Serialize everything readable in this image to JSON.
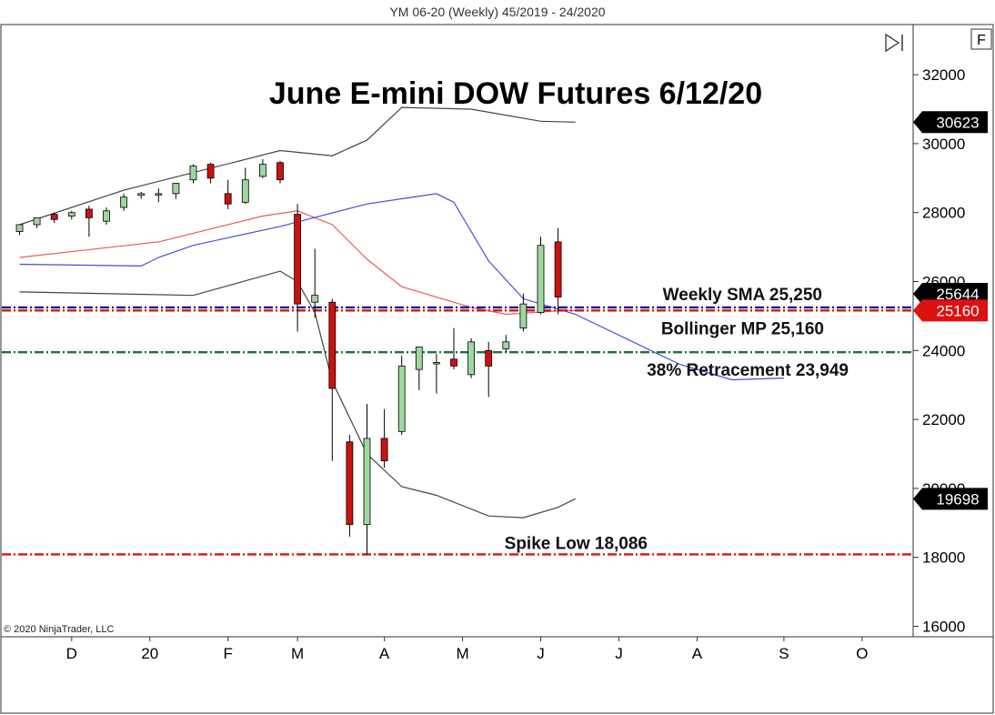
{
  "header": {
    "instrument_title": "YM 06-20 (Weekly)  45/2019 - 24/2020"
  },
  "toolbar": {
    "f_label": "F"
  },
  "copyright": "© 2020 NinjaTrader, LLC",
  "colors": {
    "up": "#9ed89e",
    "down": "#cc1111",
    "upper_band": "#444444",
    "lower_band": "#444444",
    "mid_band": "#e06060",
    "sma": "#4a4ae0",
    "sma_line": "#1a1a99",
    "bb_line": "#dd1111",
    "retr_line": "#117733",
    "spike_line": "#dd1111"
  },
  "chart_data": {
    "type": "candlestick",
    "title": "June E-mini DOW Futures 6/12/20",
    "ylim": [
      15600,
      32600
    ],
    "y_ticks": [
      16000,
      18000,
      20000,
      22000,
      24000,
      26000,
      28000,
      30000,
      32000
    ],
    "y_tick_labels": [
      "16000",
      "18000",
      "20000",
      "22000",
      "24000",
      "26000",
      "28000",
      "30000",
      "32000"
    ],
    "x_month_labels": [
      {
        "label": "D",
        "week": 3
      },
      {
        "label": "20",
        "week": 7.5
      },
      {
        "label": "F",
        "week": 12
      },
      {
        "label": "M",
        "week": 16
      },
      {
        "label": "A",
        "week": 21
      },
      {
        "label": "M",
        "week": 25.5
      },
      {
        "label": "J",
        "week": 30
      },
      {
        "label": "J",
        "week": 34.5
      },
      {
        "label": "A",
        "week": 39
      },
      {
        "label": "S",
        "week": 44
      },
      {
        "label": "O",
        "week": 48.5
      }
    ],
    "candles": [
      {
        "open": 27450,
        "high": 27600,
        "low": 27350,
        "close": 27650
      },
      {
        "open": 27650,
        "high": 27800,
        "low": 27550,
        "close": 27850
      },
      {
        "open": 27950,
        "high": 28000,
        "low": 27700,
        "close": 27800
      },
      {
        "open": 27900,
        "high": 28050,
        "low": 27800,
        "close": 28000
      },
      {
        "open": 28100,
        "high": 28200,
        "low": 27300,
        "close": 27850
      },
      {
        "open": 27750,
        "high": 28150,
        "low": 27650,
        "close": 28050
      },
      {
        "open": 28150,
        "high": 28550,
        "low": 28050,
        "close": 28450
      },
      {
        "open": 28500,
        "high": 28600,
        "low": 28400,
        "close": 28550
      },
      {
        "open": 28550,
        "high": 28700,
        "low": 28300,
        "close": 28550
      },
      {
        "open": 28550,
        "high": 28850,
        "low": 28400,
        "close": 28850
      },
      {
        "open": 28950,
        "high": 29400,
        "low": 28850,
        "close": 29350
      },
      {
        "open": 29400,
        "high": 29450,
        "low": 28850,
        "close": 29000
      },
      {
        "open": 28550,
        "high": 28950,
        "low": 28100,
        "close": 28250
      },
      {
        "open": 28300,
        "high": 29300,
        "low": 28250,
        "close": 28950
      },
      {
        "open": 29050,
        "high": 29550,
        "low": 29000,
        "close": 29400
      },
      {
        "open": 29450,
        "high": 29500,
        "low": 28850,
        "close": 28950
      },
      {
        "open": 27950,
        "high": 28250,
        "low": 24550,
        "close": 25350
      },
      {
        "open": 25400,
        "high": 26950,
        "low": 24950,
        "close": 25600
      },
      {
        "open": 25400,
        "high": 25500,
        "low": 20800,
        "close": 22900
      },
      {
        "open": 21350,
        "high": 21550,
        "low": 18600,
        "close": 18950
      },
      {
        "open": 18950,
        "high": 22450,
        "low": 18086,
        "close": 21450
      },
      {
        "open": 21450,
        "high": 22300,
        "low": 20600,
        "close": 20800
      },
      {
        "open": 21650,
        "high": 23850,
        "low": 21550,
        "close": 23550
      },
      {
        "open": 23450,
        "high": 24100,
        "low": 22850,
        "close": 24100
      },
      {
        "open": 23650,
        "high": 23900,
        "low": 22750,
        "close": 23650
      },
      {
        "open": 23750,
        "high": 24650,
        "low": 23450,
        "close": 23550
      },
      {
        "open": 23300,
        "high": 24350,
        "low": 23200,
        "close": 24250
      },
      {
        "open": 24000,
        "high": 24250,
        "low": 22650,
        "close": 23550
      },
      {
        "open": 24050,
        "high": 24450,
        "low": 23950,
        "close": 24250
      },
      {
        "open": 24650,
        "high": 25650,
        "low": 24550,
        "close": 25350
      },
      {
        "open": 25100,
        "high": 27300,
        "low": 25050,
        "close": 27050
      },
      {
        "open": 27150,
        "high": 27550,
        "low": 25050,
        "close": 25550
      }
    ],
    "upper_band": {
      "x": [
        0,
        6,
        15,
        18,
        20,
        22,
        26,
        30,
        32
      ],
      "y": [
        27650,
        28650,
        29800,
        29650,
        30100,
        31050,
        31000,
        30650,
        30623
      ]
    },
    "middle_band": {
      "x": [
        0,
        8,
        14,
        16,
        18,
        20,
        22,
        26,
        28,
        31,
        32
      ],
      "y": [
        26700,
        27150,
        27900,
        28050,
        27650,
        26650,
        25850,
        25250,
        25050,
        25150,
        25160
      ]
    },
    "lower_band": {
      "x": [
        0,
        10,
        15,
        16,
        17,
        18,
        20,
        22,
        24,
        27,
        29,
        31,
        32
      ],
      "y": [
        25700,
        25600,
        26300,
        26000,
        25100,
        23100,
        21000,
        20050,
        19800,
        19200,
        19150,
        19450,
        19698
      ]
    },
    "sma": {
      "x": [
        0,
        7,
        8,
        10,
        15,
        20,
        22,
        24,
        25,
        27,
        29,
        32,
        38,
        41,
        44
      ],
      "y": [
        26500,
        26450,
        26700,
        27050,
        27600,
        28250,
        28400,
        28550,
        28300,
        26600,
        25500,
        25050,
        23600,
        23150,
        23200
      ]
    },
    "levels": [
      {
        "name": "Weekly SMA",
        "value": 25250,
        "label": "Weekly SMA 25,250"
      },
      {
        "name": "Bollinger MP",
        "value": 25160,
        "label": "Bollinger MP 25,160"
      },
      {
        "name": "38% Retracement",
        "value": 23949,
        "label": "38% Retracement  23,949"
      },
      {
        "name": "Spike Low",
        "value": 18086,
        "label": "Spike Low 18,086"
      }
    ],
    "price_tags": [
      {
        "value": 30623,
        "label": "30623",
        "style": "black"
      },
      {
        "value": 25644,
        "label": "25644",
        "style": "black"
      },
      {
        "value": 25160,
        "label": "25160",
        "style": "red"
      },
      {
        "value": 19698,
        "label": "19698",
        "style": "black"
      }
    ]
  }
}
